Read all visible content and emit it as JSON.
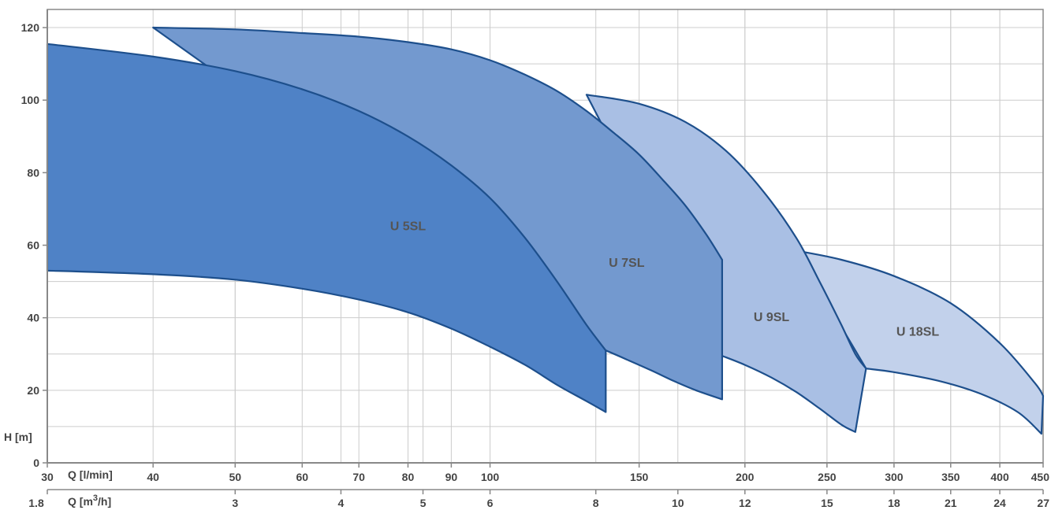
{
  "chart_data": {
    "type": "area",
    "title": "",
    "x_scale": "log",
    "xlabel": "Q [l/min]",
    "xlabel_secondary_prefix": "Q [m",
    "xlabel_secondary_sup": "3",
    "xlabel_secondary_suffix": "/h]",
    "ylabel": "H [m]",
    "xlim": [
      30,
      450
    ],
    "ylim": [
      0,
      125
    ],
    "grid": true,
    "x_ticks": [
      "30",
      "40",
      "50",
      "60",
      "70",
      "80",
      "90",
      "100",
      "150",
      "200",
      "250",
      "300",
      "350",
      "400",
      "450"
    ],
    "x_ticks_secondary": [
      "1.8",
      "3",
      "4",
      "5",
      "6",
      "8",
      "10",
      "12",
      "15",
      "18",
      "21",
      "24",
      "27"
    ],
    "y_ticks": [
      "0",
      "20",
      "40",
      "60",
      "80",
      "100",
      "120"
    ],
    "series": [
      {
        "name": "U 5SL",
        "fill": "#4f82c6",
        "upper": [
          [
            30,
            115.5
          ],
          [
            40,
            112
          ],
          [
            50,
            108
          ],
          [
            60,
            103
          ],
          [
            70,
            97
          ],
          [
            80,
            90
          ],
          [
            90,
            82
          ],
          [
            100,
            73
          ],
          [
            110,
            62
          ],
          [
            120,
            50
          ],
          [
            130,
            38
          ],
          [
            137,
            31
          ]
        ],
        "lower": [
          [
            30,
            53
          ],
          [
            40,
            52
          ],
          [
            50,
            50.5
          ],
          [
            60,
            48
          ],
          [
            70,
            45
          ],
          [
            80,
            41.5
          ],
          [
            90,
            37
          ],
          [
            100,
            32
          ],
          [
            110,
            27
          ],
          [
            120,
            21.5
          ],
          [
            130,
            17
          ],
          [
            137,
            14
          ]
        ]
      },
      {
        "name": "U 7SL",
        "fill": "#7399cf",
        "upper": [
          [
            40,
            120
          ],
          [
            50,
            119.5
          ],
          [
            60,
            118.5
          ],
          [
            70,
            117.5
          ],
          [
            80,
            116
          ],
          [
            90,
            114
          ],
          [
            100,
            111
          ],
          [
            110,
            107
          ],
          [
            120,
            102.5
          ],
          [
            130,
            97
          ],
          [
            140,
            91
          ],
          [
            150,
            85
          ],
          [
            160,
            78
          ],
          [
            170,
            71
          ],
          [
            180,
            63
          ],
          [
            188,
            56
          ]
        ],
        "lower": [
          [
            137,
            31
          ],
          [
            145,
            28.5
          ],
          [
            155,
            25.5
          ],
          [
            165,
            22.5
          ],
          [
            175,
            20
          ],
          [
            188,
            17.5
          ]
        ]
      },
      {
        "name": "U 9SL",
        "fill": "#a9bfe4",
        "upper": [
          [
            130,
            101.5
          ],
          [
            150,
            99
          ],
          [
            170,
            94
          ],
          [
            190,
            86
          ],
          [
            210,
            75
          ],
          [
            230,
            62
          ],
          [
            245,
            50
          ],
          [
            260,
            38
          ],
          [
            270,
            30
          ],
          [
            278,
            26
          ]
        ],
        "lower": [
          [
            188,
            29.5
          ],
          [
            200,
            27
          ],
          [
            215,
            23.5
          ],
          [
            230,
            19.5
          ],
          [
            245,
            15
          ],
          [
            260,
            10.5
          ],
          [
            270,
            8.5
          ]
        ]
      },
      {
        "name": "U 18SL",
        "fill": "#c2d1eb",
        "upper": [
          [
            230,
            58.5
          ],
          [
            260,
            56
          ],
          [
            300,
            51.5
          ],
          [
            350,
            44
          ],
          [
            400,
            33
          ],
          [
            440,
            22
          ],
          [
            450,
            18.5
          ]
        ],
        "lower": [
          [
            278,
            26
          ],
          [
            300,
            25
          ],
          [
            340,
            22.5
          ],
          [
            380,
            19
          ],
          [
            420,
            14
          ],
          [
            448,
            8
          ]
        ]
      }
    ],
    "labels": [
      {
        "text": "U 5SL",
        "x": 80,
        "y": 65
      },
      {
        "text": "U 7SL",
        "x": 145,
        "y": 55
      },
      {
        "text": "U 9SL",
        "x": 215,
        "y": 40
      },
      {
        "text": "U 18SL",
        "x": 320,
        "y": 36
      }
    ],
    "colors": {
      "outline": "#1d4f8c",
      "grid": "#cccccc",
      "axis": "#888888",
      "text": "#444444"
    }
  }
}
